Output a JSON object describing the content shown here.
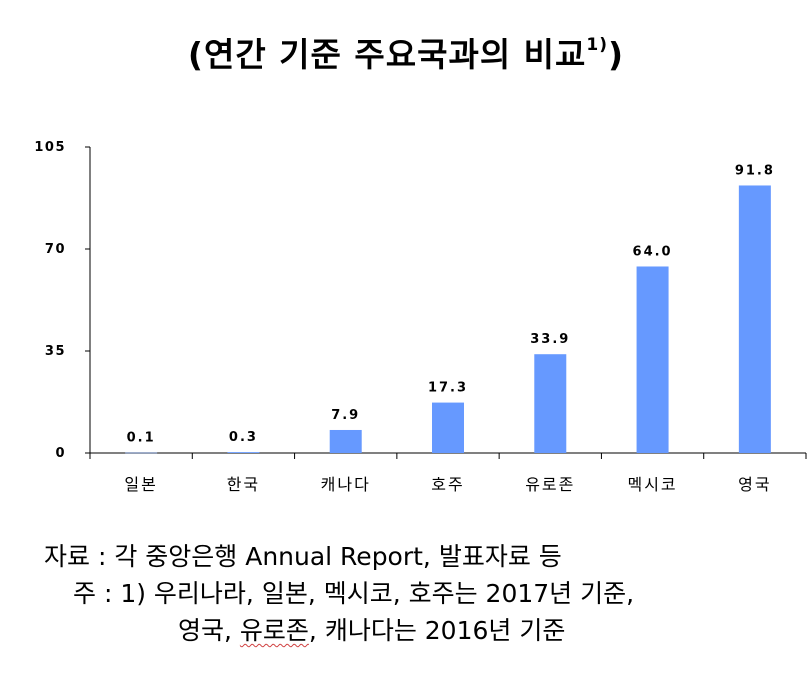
{
  "title": "(연간 기준 주요국과의 비교",
  "title_sup": "1)",
  "title_close": ")",
  "chart_data": {
    "type": "bar",
    "categories": [
      "일본",
      "한국",
      "캐나다",
      "호주",
      "유로존",
      "멕시코",
      "영국"
    ],
    "values": [
      0.1,
      0.3,
      7.9,
      17.3,
      33.9,
      64.0,
      91.8
    ],
    "data_labels": [
      "0.1",
      "0.3",
      "7.9",
      "17.3",
      "33.9",
      "64.0",
      "91.8"
    ],
    "yticks": [
      0,
      35,
      70,
      105
    ],
    "ylim": [
      0,
      105
    ],
    "bar_color": "#6699ff",
    "grid": false
  },
  "notes": {
    "source": "자료 : 각 중앙은행 Annual Report, 발표자료 등",
    "note1": "주 : 1) 우리나라, 일본, 멕시코, 호주는 2017년 기준,",
    "note2_a": "영국, ",
    "note2_b": "유로존",
    "note2_c": ", 캐나다는 2016년 기준"
  }
}
